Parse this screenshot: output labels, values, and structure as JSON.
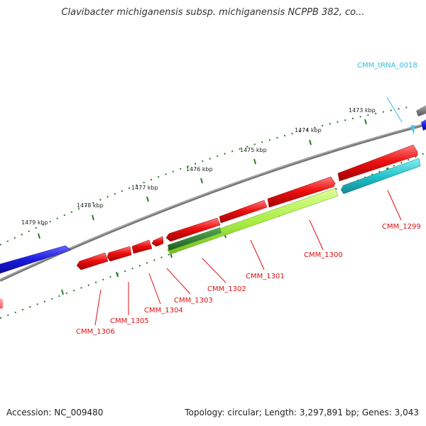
{
  "title": "Clavibacter michiganensis subsp. michiganensis NCPPB 382, co...",
  "footer": {
    "accession": "Accession: NC_009480",
    "summary": "Topology: circular; Length: 3,297,891 bp; Genes: 3,043"
  },
  "colors": {
    "cds_forward": "#ee1111",
    "cds_reverse": "#aaee44",
    "cds_dark": "#2d7a2d",
    "cds_cyan": "#22c4cc",
    "cds_blue": "#1a1ae0",
    "trna": "#44c8ee",
    "backbone": "#777777",
    "tick": "#2a7a2a",
    "label_red": "#dd1111",
    "label_cyan": "#33bbdd"
  },
  "kbp_labels": [
    "1473 kbp",
    "1474 kbp",
    "1475 kbp",
    "1476 kbp",
    "1477 kbp",
    "1478 kbp",
    "1479 kbp"
  ],
  "genes": [
    {
      "label": "CMM_tRNA_0018",
      "type": "tRNA"
    },
    {
      "label": "CMM_1299",
      "type": "CDS"
    },
    {
      "label": "CMM_1300",
      "type": "CDS"
    },
    {
      "label": "CMM_1301",
      "type": "CDS"
    },
    {
      "label": "CMM_1302",
      "type": "CDS"
    },
    {
      "label": "CMM_1303",
      "type": "CDS"
    },
    {
      "label": "CMM_1304",
      "type": "CDS"
    },
    {
      "label": "CMM_1305",
      "type": "CDS"
    },
    {
      "label": "CMM_1306",
      "type": "CDS"
    }
  ]
}
